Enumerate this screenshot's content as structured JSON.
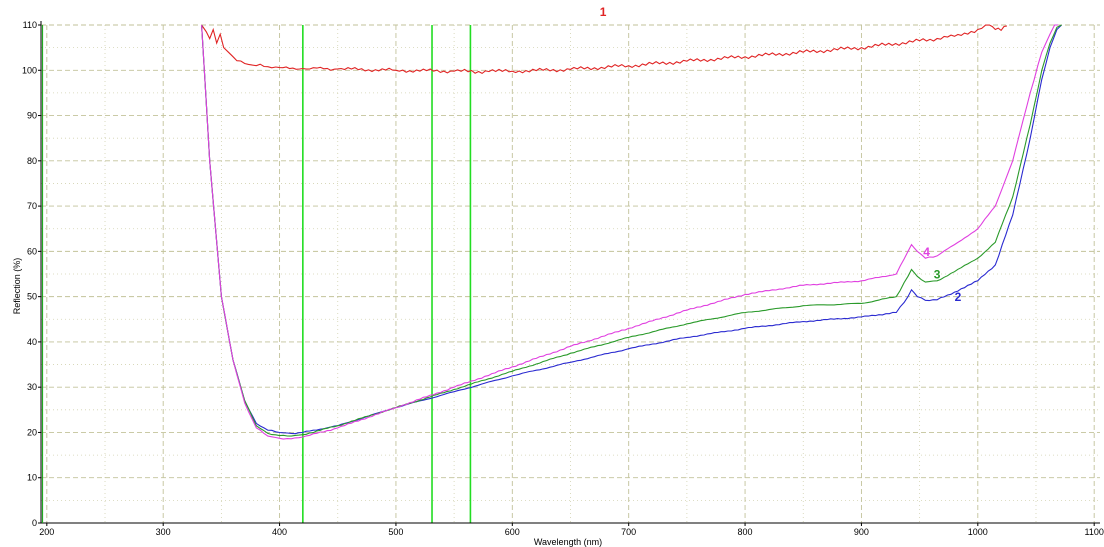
{
  "chart_data": {
    "type": "line",
    "title": "",
    "xlabel": "Wavelength (nm)",
    "ylabel": "Reflection (%)",
    "xlim": [
      195,
      1105
    ],
    "ylim": [
      0,
      110
    ],
    "x_ticks": [
      200,
      300,
      400,
      500,
      600,
      700,
      800,
      900,
      1000,
      1100
    ],
    "y_ticks": [
      0,
      10,
      20,
      30,
      40,
      50,
      60,
      70,
      80,
      90,
      100,
      110
    ],
    "grid": true,
    "legend": "none",
    "vertical_markers": {
      "color": "#22dd22",
      "x": [
        420,
        531,
        564
      ]
    },
    "series": [
      {
        "name": "1",
        "color": "#e02424",
        "label_position": [
          678,
          112
        ],
        "x": [
          333,
          337,
          340,
          343,
          346,
          349,
          352,
          356,
          360,
          370,
          380,
          390,
          400,
          420,
          450,
          500,
          550,
          580,
          600,
          650,
          700,
          750,
          800,
          850,
          900,
          950,
          980,
          1000,
          1010,
          1015,
          1020,
          1025
        ],
        "y": [
          110,
          108.5,
          107,
          109,
          106,
          108,
          105,
          104,
          103,
          101.5,
          101,
          100.8,
          100.6,
          100.4,
          100.3,
          100,
          99.8,
          99.7,
          99.8,
          100.2,
          101,
          102,
          103,
          104,
          105,
          106.5,
          107.5,
          109,
          110,
          109,
          108.8,
          109.8
        ]
      },
      {
        "name": "2",
        "color": "#2a2ad0",
        "label_position": [
          983,
          49
        ],
        "x": [
          333,
          340,
          350,
          360,
          370,
          380,
          390,
          400,
          410,
          420,
          450,
          500,
          550,
          600,
          650,
          700,
          750,
          800,
          850,
          900,
          930,
          940,
          943,
          948,
          955,
          965,
          980,
          1000,
          1015,
          1030,
          1045,
          1055,
          1062,
          1068,
          1072
        ],
        "y": [
          110,
          80,
          50,
          36,
          27,
          22,
          20.5,
          20,
          19.8,
          20,
          21.5,
          25.5,
          29,
          32.5,
          35.5,
          38.5,
          41,
          43,
          44.5,
          45.5,
          46.5,
          50,
          51.5,
          50,
          49.2,
          49.3,
          51,
          53.5,
          57,
          68,
          85,
          98,
          105,
          109,
          110
        ]
      },
      {
        "name": "3",
        "color": "#2a9a2a",
        "label_position": [
          965,
          54
        ],
        "x": [
          333,
          340,
          350,
          360,
          370,
          380,
          390,
          400,
          410,
          420,
          450,
          500,
          550,
          600,
          650,
          700,
          750,
          800,
          850,
          900,
          930,
          940,
          943,
          948,
          955,
          965,
          980,
          1000,
          1015,
          1030,
          1045,
          1055,
          1062,
          1068,
          1072
        ],
        "y": [
          110,
          80,
          50,
          36,
          27,
          21.5,
          19.8,
          19.3,
          19.2,
          19.5,
          21.5,
          25.5,
          29.5,
          33.5,
          37.5,
          41,
          44,
          46.5,
          48,
          48.5,
          50,
          54.5,
          56,
          54.5,
          53.2,
          53.5,
          55.5,
          58.5,
          62,
          72,
          88,
          100,
          106,
          109.5,
          110
        ]
      },
      {
        "name": "4",
        "color": "#e040e0",
        "label_position": [
          956,
          59
        ],
        "x": [
          333,
          340,
          350,
          360,
          370,
          380,
          390,
          400,
          410,
          420,
          450,
          500,
          550,
          600,
          650,
          700,
          750,
          800,
          850,
          900,
          930,
          940,
          943,
          948,
          955,
          965,
          980,
          1000,
          1015,
          1030,
          1045,
          1055,
          1062,
          1066,
          1069
        ],
        "y": [
          110,
          80,
          50,
          36,
          26.5,
          21,
          19.2,
          18.7,
          18.6,
          19,
          21,
          25.5,
          30,
          34.5,
          39,
          43,
          47,
          50.5,
          52.5,
          53.5,
          55,
          60,
          61.5,
          60,
          58.5,
          59,
          61.5,
          65,
          70,
          80,
          95,
          104,
          108,
          110,
          110
        ]
      }
    ]
  }
}
